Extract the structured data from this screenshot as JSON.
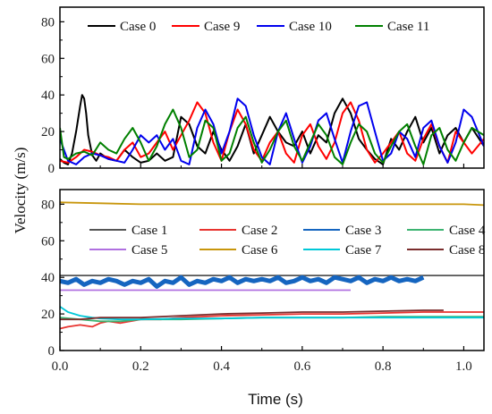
{
  "chart_data": {
    "type": "line",
    "xlabel": "Time (s)",
    "ylabel": "Velocity (m/s)",
    "xlim": [
      0,
      1.05
    ],
    "x_ticks": [
      "0.0",
      "0.2",
      "0.4",
      "0.6",
      "0.8",
      "1.0"
    ],
    "panels": [
      {
        "name": "top",
        "ylim": [
          0,
          88
        ],
        "y_ticks": [
          "0",
          "20",
          "40",
          "60",
          "80"
        ],
        "legend_position": "top",
        "series": [
          {
            "name": "Case 0",
            "color": "#000000",
            "x": [
              0,
              0.01,
              0.02,
              0.03,
              0.04,
              0.05,
              0.055,
              0.06,
              0.065,
              0.07,
              0.08,
              0.09,
              0.1,
              0.12,
              0.14,
              0.16,
              0.18,
              0.2,
              0.22,
              0.24,
              0.26,
              0.28,
              0.3,
              0.32,
              0.34,
              0.36,
              0.38,
              0.4,
              0.42,
              0.44,
              0.46,
              0.48,
              0.5,
              0.52,
              0.54,
              0.56,
              0.58,
              0.6,
              0.62,
              0.64,
              0.66,
              0.68,
              0.7,
              0.72,
              0.74,
              0.76,
              0.78,
              0.8,
              0.82,
              0.84,
              0.86,
              0.88,
              0.9,
              0.92,
              0.94,
              0.96,
              0.98,
              1.0,
              1.02,
              1.05
            ],
            "y": [
              5,
              3,
              2,
              8,
              20,
              34,
              40,
              38,
              30,
              18,
              7,
              4,
              8,
              5,
              4,
              10,
              6,
              3,
              4,
              8,
              4,
              6,
              28,
              24,
              12,
              8,
              20,
              10,
              4,
              12,
              24,
              8,
              18,
              28,
              20,
              14,
              12,
              20,
              8,
              18,
              14,
              30,
              38,
              30,
              16,
              10,
              5,
              2,
              16,
              10,
              20,
              28,
              14,
              22,
              8,
              18,
              22,
              14,
              22,
              12
            ]
          },
          {
            "name": "Case 9",
            "color": "#ff0000",
            "x": [
              0,
              0.02,
              0.04,
              0.06,
              0.08,
              0.1,
              0.12,
              0.14,
              0.16,
              0.18,
              0.2,
              0.22,
              0.24,
              0.26,
              0.28,
              0.3,
              0.32,
              0.34,
              0.36,
              0.38,
              0.4,
              0.42,
              0.44,
              0.46,
              0.48,
              0.5,
              0.52,
              0.54,
              0.56,
              0.58,
              0.6,
              0.62,
              0.64,
              0.66,
              0.68,
              0.7,
              0.72,
              0.74,
              0.76,
              0.78,
              0.8,
              0.82,
              0.84,
              0.86,
              0.88,
              0.9,
              0.92,
              0.94,
              0.96,
              0.98,
              1.0,
              1.02,
              1.05
            ],
            "y": [
              4,
              3,
              6,
              10,
              9,
              7,
              6,
              4,
              10,
              14,
              6,
              8,
              14,
              20,
              10,
              18,
              26,
              36,
              30,
              14,
              4,
              20,
              32,
              24,
              10,
              4,
              14,
              20,
              8,
              3,
              18,
              24,
              12,
              5,
              14,
              30,
              36,
              26,
              10,
              3,
              8,
              14,
              20,
              8,
              4,
              16,
              24,
              12,
              3,
              20,
              14,
              8,
              16
            ]
          },
          {
            "name": "Case 10",
            "color": "#0000ee",
            "x": [
              0,
              0.02,
              0.04,
              0.06,
              0.08,
              0.1,
              0.12,
              0.14,
              0.16,
              0.18,
              0.2,
              0.22,
              0.24,
              0.26,
              0.28,
              0.3,
              0.32,
              0.34,
              0.36,
              0.38,
              0.4,
              0.42,
              0.44,
              0.46,
              0.48,
              0.5,
              0.52,
              0.54,
              0.56,
              0.58,
              0.6,
              0.62,
              0.64,
              0.66,
              0.68,
              0.7,
              0.72,
              0.74,
              0.76,
              0.78,
              0.8,
              0.82,
              0.84,
              0.86,
              0.88,
              0.9,
              0.92,
              0.94,
              0.96,
              0.98,
              1.0,
              1.02,
              1.05
            ],
            "y": [
              16,
              4,
              2,
              6,
              8,
              7,
              5,
              4,
              3,
              10,
              18,
              14,
              18,
              10,
              16,
              4,
              2,
              22,
              32,
              24,
              8,
              20,
              38,
              34,
              18,
              6,
              2,
              20,
              30,
              16,
              3,
              12,
              26,
              30,
              16,
              3,
              20,
              34,
              36,
              20,
              4,
              8,
              20,
              16,
              6,
              22,
              26,
              12,
              3,
              14,
              32,
              28,
              12
            ]
          },
          {
            "name": "Case 11",
            "color": "#008000",
            "x": [
              0,
              0.01,
              0.02,
              0.04,
              0.06,
              0.08,
              0.1,
              0.12,
              0.14,
              0.16,
              0.18,
              0.2,
              0.22,
              0.24,
              0.26,
              0.28,
              0.3,
              0.32,
              0.34,
              0.36,
              0.38,
              0.4,
              0.42,
              0.44,
              0.46,
              0.48,
              0.5,
              0.52,
              0.54,
              0.56,
              0.58,
              0.6,
              0.62,
              0.64,
              0.66,
              0.68,
              0.7,
              0.72,
              0.74,
              0.76,
              0.78,
              0.8,
              0.82,
              0.84,
              0.86,
              0.88,
              0.9,
              0.92,
              0.94,
              0.96,
              0.98,
              1.0,
              1.02,
              1.05
            ],
            "y": [
              22,
              6,
              5,
              8,
              9,
              7,
              14,
              10,
              8,
              16,
              22,
              14,
              4,
              12,
              24,
              32,
              22,
              6,
              10,
              26,
              22,
              4,
              8,
              22,
              28,
              14,
              3,
              10,
              20,
              26,
              12,
              4,
              14,
              24,
              18,
              6,
              2,
              14,
              24,
              20,
              8,
              3,
              12,
              20,
              24,
              12,
              2,
              18,
              22,
              10,
              4,
              14,
              22,
              18
            ]
          }
        ]
      },
      {
        "name": "bottom",
        "ylim": [
          0,
          88
        ],
        "y_ticks": [
          "0",
          "20",
          "40",
          "60",
          "80"
        ],
        "legend_position": "middle",
        "series": [
          {
            "name": "Case 1",
            "color": "#555555",
            "x": [
              0,
              0.1,
              0.2,
              0.3,
              0.4,
              0.5,
              0.6,
              0.7,
              0.8,
              0.9,
              1.0,
              1.05
            ],
            "y": [
              41,
              41,
              41,
              41,
              41,
              41,
              41,
              41,
              41,
              41,
              41,
              41
            ]
          },
          {
            "name": "Case 2",
            "color": "#e8332f",
            "x": [
              0,
              0.02,
              0.05,
              0.08,
              0.1,
              0.12,
              0.15,
              0.2,
              0.25,
              0.3,
              0.4,
              0.5,
              0.6,
              0.7,
              0.8,
              0.9,
              1.0,
              1.05
            ],
            "y": [
              12,
              13,
              14,
              13,
              15,
              16,
              15,
              17,
              17,
              18,
              19,
              19.5,
              20,
              20,
              20.5,
              21,
              21,
              21
            ]
          },
          {
            "name": "Case 3",
            "color": "#1565c0",
            "x": [
              0,
              0.02,
              0.04,
              0.06,
              0.08,
              0.1,
              0.12,
              0.14,
              0.16,
              0.18,
              0.2,
              0.22,
              0.24,
              0.26,
              0.28,
              0.3,
              0.32,
              0.34,
              0.36,
              0.38,
              0.4,
              0.42,
              0.44,
              0.46,
              0.48,
              0.5,
              0.52,
              0.54,
              0.56,
              0.58,
              0.6,
              0.62,
              0.64,
              0.66,
              0.68,
              0.7,
              0.72,
              0.74,
              0.76,
              0.78,
              0.8,
              0.82,
              0.84,
              0.86,
              0.88,
              0.9
            ],
            "y": [
              38,
              37,
              39,
              36,
              38,
              37,
              39,
              38,
              36,
              38,
              37,
              39,
              35,
              38,
              37,
              40,
              36,
              38,
              37,
              39,
              38,
              40,
              37,
              39,
              38,
              39,
              38,
              40,
              37,
              38,
              40,
              38,
              39,
              37,
              40,
              39,
              38,
              40,
              37,
              39,
              38,
              40,
              38,
              39,
              38,
              40
            ]
          },
          {
            "name": "Case 4",
            "color": "#3cb371",
            "x": [
              0,
              0.05,
              0.1,
              0.15,
              0.2,
              0.3,
              0.4,
              0.5,
              0.6,
              0.7,
              0.8,
              0.9,
              1.0,
              1.05
            ],
            "y": [
              18,
              17,
              16,
              16,
              17,
              17,
              17.5,
              18,
              18,
              18,
              18.5,
              18.5,
              18.5,
              18.5
            ]
          },
          {
            "name": "Case 5",
            "color": "#b070e0",
            "x": [
              0,
              0.1,
              0.2,
              0.3,
              0.4,
              0.5,
              0.6,
              0.7,
              0.72
            ],
            "y": [
              33,
              33,
              33,
              33,
              33,
              33,
              33,
              33,
              33
            ]
          },
          {
            "name": "Case 6",
            "color": "#c8960c",
            "x": [
              0,
              0.1,
              0.2,
              0.3,
              0.4,
              0.5,
              0.6,
              0.7,
              0.8,
              0.9,
              1.0,
              1.05
            ],
            "y": [
              81,
              80.5,
              80,
              80,
              80,
              80,
              80,
              80,
              80,
              80,
              80,
              79.5
            ]
          },
          {
            "name": "Case 7",
            "color": "#00c8d8",
            "x": [
              0,
              0.02,
              0.05,
              0.08,
              0.1,
              0.15,
              0.2,
              0.3,
              0.4,
              0.5,
              0.6,
              0.7,
              0.8,
              0.9,
              1.0,
              1.05
            ],
            "y": [
              24,
              21,
              19,
              18,
              17.5,
              17,
              17,
              17.5,
              17.5,
              18,
              18,
              18,
              18,
              18,
              18,
              18
            ]
          },
          {
            "name": "Case 8",
            "color": "#7b2d2d",
            "x": [
              0,
              0.05,
              0.1,
              0.15,
              0.2,
              0.3,
              0.4,
              0.5,
              0.6,
              0.7,
              0.8,
              0.9,
              0.95
            ],
            "y": [
              17,
              17,
              18,
              18,
              18,
              19,
              20,
              20.5,
              21,
              21,
              21.5,
              22,
              22
            ]
          }
        ]
      }
    ]
  }
}
